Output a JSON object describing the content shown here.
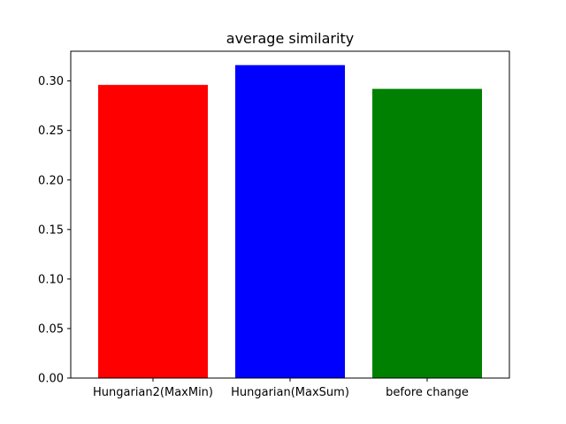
{
  "chart_data": {
    "type": "bar",
    "title": "average similarity",
    "xlabel": "",
    "ylabel": "",
    "categories": [
      "Hungarian2(MaxMin)",
      "Hungarian(MaxSum)",
      "before change"
    ],
    "values": [
      0.296,
      0.316,
      0.292
    ],
    "colors": [
      "#ff0000",
      "#0000ff",
      "#008000"
    ],
    "ylim": [
      0,
      0.33
    ],
    "yticks": [
      0.0,
      0.05,
      0.1,
      0.15,
      0.2,
      0.25,
      0.3
    ],
    "ytick_labels": [
      "0.00",
      "0.05",
      "0.10",
      "0.15",
      "0.20",
      "0.25",
      "0.30"
    ],
    "grid": false
  }
}
